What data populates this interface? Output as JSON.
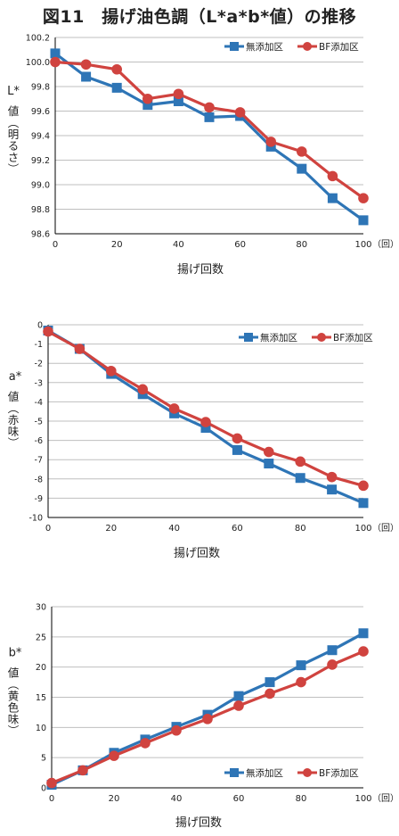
{
  "figure_title": "図11　揚げ油色調（L*a*b*値）の推移",
  "colors": {
    "series1": "#2e75b6",
    "series2": "#d0433f",
    "grid": "#bfbfbf",
    "axis": "#000000"
  },
  "chart_data": [
    {
      "type": "line",
      "ylabel_main": "L*",
      "ylabel_sub": "値（明るさ）",
      "xlabel": "揚げ回数",
      "x_unit": "（回）",
      "x": [
        0,
        10,
        20,
        30,
        40,
        50,
        60,
        70,
        80,
        90,
        100
      ],
      "xticks": [
        "0",
        "20",
        "40",
        "60",
        "80",
        "100"
      ],
      "yticks": [
        "98.6",
        "98.8",
        "99.0",
        "99.2",
        "99.4",
        "99.6",
        "99.8",
        "100.0",
        "100.2"
      ],
      "ylim": [
        98.6,
        100.2
      ],
      "legend_position": "top-right",
      "grid": true,
      "series": [
        {
          "name": "無添加区",
          "marker": "square",
          "values": [
            100.07,
            99.88,
            99.79,
            99.65,
            99.68,
            99.55,
            99.56,
            99.31,
            99.13,
            98.89,
            98.71
          ]
        },
        {
          "name": "BF添加区",
          "marker": "circle",
          "values": [
            100.0,
            99.98,
            99.94,
            99.7,
            99.74,
            99.63,
            99.59,
            99.35,
            99.27,
            99.07,
            98.89
          ]
        }
      ]
    },
    {
      "type": "line",
      "ylabel_main": "a*",
      "ylabel_sub": "値（赤味）",
      "xlabel": "揚げ回数",
      "x_unit": "（回）",
      "x": [
        0,
        10,
        20,
        30,
        40,
        50,
        60,
        70,
        80,
        90,
        100
      ],
      "xticks": [
        "0",
        "20",
        "40",
        "60",
        "80",
        "100"
      ],
      "yticks": [
        "-10",
        "-9",
        "-8",
        "-7",
        "-6",
        "-5",
        "-4",
        "-3",
        "-2",
        "-1",
        "0"
      ],
      "ylim": [
        -10,
        0
      ],
      "legend_position": "top-right",
      "grid": true,
      "series": [
        {
          "name": "無添加区",
          "marker": "square",
          "values": [
            -0.3,
            -1.25,
            -2.55,
            -3.6,
            -4.6,
            -5.35,
            -6.5,
            -7.2,
            -7.95,
            -8.55,
            -9.25
          ]
        },
        {
          "name": "BF添加区",
          "marker": "circle",
          "values": [
            -0.35,
            -1.25,
            -2.4,
            -3.35,
            -4.35,
            -5.05,
            -5.9,
            -6.6,
            -7.1,
            -7.9,
            -8.35
          ]
        }
      ]
    },
    {
      "type": "line",
      "ylabel_main": "b*",
      "ylabel_sub": "値（黄色味）",
      "xlabel": "揚げ回数",
      "x_unit": "（回）",
      "x": [
        0,
        10,
        20,
        30,
        40,
        50,
        60,
        70,
        80,
        90,
        100
      ],
      "xticks": [
        "0",
        "20",
        "40",
        "60",
        "80",
        "100"
      ],
      "yticks": [
        "0",
        "5",
        "10",
        "15",
        "20",
        "25",
        "30"
      ],
      "ylim": [
        0,
        30
      ],
      "legend_position": "bottom-right",
      "grid": true,
      "series": [
        {
          "name": "無添加区",
          "marker": "square",
          "values": [
            0.5,
            2.9,
            5.8,
            8.0,
            10.1,
            12.1,
            15.2,
            17.5,
            20.3,
            22.8,
            25.6
          ]
        },
        {
          "name": "BF添加区",
          "marker": "circle",
          "values": [
            0.8,
            2.9,
            5.3,
            7.4,
            9.5,
            11.4,
            13.6,
            15.6,
            17.5,
            20.4,
            22.6
          ]
        }
      ]
    }
  ]
}
